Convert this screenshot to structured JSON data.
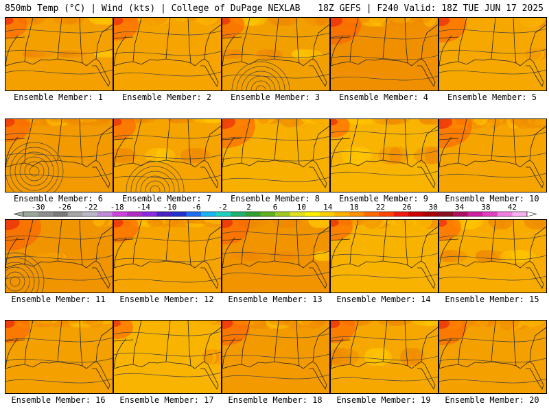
{
  "header": {
    "left": "850mb Temp (°C) | Wind (kts) | College of DuPage NEXLAB",
    "right": "18Z GEFS | F240 Valid: 18Z TUE JUN 17 2025"
  },
  "colorbar": {
    "ticks": [
      "-30",
      "-26",
      "-22",
      "-18",
      "-14",
      "-10",
      "-6",
      "-2",
      "2",
      "6",
      "10",
      "14",
      "18",
      "22",
      "26",
      "30",
      "34",
      "38",
      "42"
    ],
    "colors": [
      "#9aa79a",
      "#8e8e8e",
      "#7a7a7a",
      "#a6a6a6",
      "#b8b8c8",
      "#c08ad8",
      "#cc44dd",
      "#b22ec0",
      "#8a2be2",
      "#4b22c0",
      "#2233cc",
      "#1e6cf0",
      "#18b4f0",
      "#20d0c0",
      "#20b070",
      "#30a030",
      "#60b020",
      "#a0c820",
      "#e0e020",
      "#fff000",
      "#ffd000",
      "#ffb000",
      "#ff9000",
      "#ff6a00",
      "#ff4400",
      "#ee1a10",
      "#cc0000",
      "#a80000",
      "#881020",
      "#aa1060",
      "#cc20a0",
      "#e040c0",
      "#f080e0",
      "#f8b0f0"
    ]
  },
  "panels": [
    {
      "label": "Ensemble Member: 1",
      "tint": "#f4a000",
      "warm": 0.2
    },
    {
      "label": "Ensemble Member: 2",
      "tint": "#f6a400",
      "warm": 0.3
    },
    {
      "label": "Ensemble Member: 3",
      "tint": "#f2a000",
      "warm": 0.2
    },
    {
      "label": "Ensemble Member: 4",
      "tint": "#f09000",
      "warm": 0.5
    },
    {
      "label": "Ensemble Member: 5",
      "tint": "#f6a800",
      "warm": 0.4
    },
    {
      "label": "Ensemble Member: 6",
      "tint": "#f29a00",
      "warm": 0.3
    },
    {
      "label": "Ensemble Member: 7",
      "tint": "#f6a400",
      "warm": 0.2
    },
    {
      "label": "Ensemble Member: 8",
      "tint": "#f8b000",
      "warm": 0.6
    },
    {
      "label": "Ensemble Member: 9",
      "tint": "#f8b400",
      "warm": 0.1
    },
    {
      "label": "Ensemble Member: 10",
      "tint": "#f6a400",
      "warm": 0.6
    },
    {
      "label": "Ensemble Member: 11",
      "tint": "#f09400",
      "warm": 0.7
    },
    {
      "label": "Ensemble Member: 12",
      "tint": "#f6a400",
      "warm": 0.3
    },
    {
      "label": "Ensemble Member: 13",
      "tint": "#f29400",
      "warm": 0.4
    },
    {
      "label": "Ensemble Member: 14",
      "tint": "#f8b200",
      "warm": 0.2
    },
    {
      "label": "Ensemble Member: 15",
      "tint": "#f8ac00",
      "warm": 0.2
    },
    {
      "label": "Ensemble Member: 16",
      "tint": "#f4a000",
      "warm": 0.3
    },
    {
      "label": "Ensemble Member: 17",
      "tint": "#f8b400",
      "warm": 0.1
    },
    {
      "label": "Ensemble Member: 18",
      "tint": "#f29a00",
      "warm": 0.4
    },
    {
      "label": "Ensemble Member: 19",
      "tint": "#f6a800",
      "warm": 0.3
    },
    {
      "label": "Ensemble Member: 20",
      "tint": "#f4a000",
      "warm": 0.4
    }
  ]
}
